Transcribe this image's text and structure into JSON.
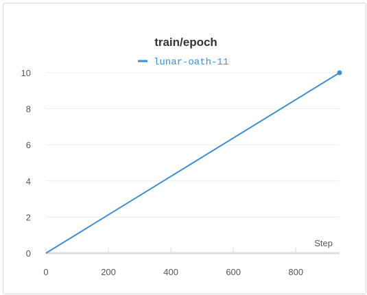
{
  "chart_data": {
    "type": "line",
    "title": "train/epoch",
    "xlabel": "Step",
    "ylabel": "",
    "xlim": [
      0,
      940
    ],
    "ylim": [
      0,
      10
    ],
    "x_ticks": [
      0,
      200,
      400,
      600,
      800
    ],
    "y_ticks": [
      0,
      2,
      4,
      6,
      8,
      10
    ],
    "grid": "horizontal",
    "legend_position": "top",
    "series": [
      {
        "name": "lunar-oath-11",
        "color": "#3a8fd4",
        "x": [
          0,
          940
        ],
        "y": [
          0,
          10
        ],
        "end_marker": true
      }
    ]
  }
}
